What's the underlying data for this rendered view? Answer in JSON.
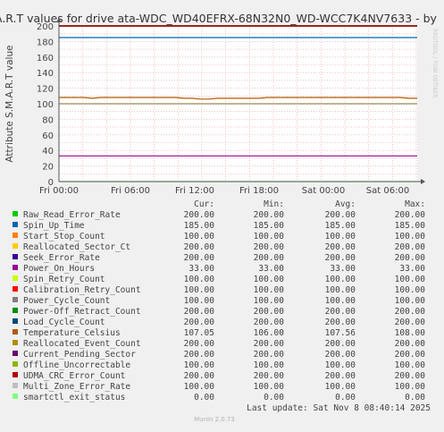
{
  "title": "A.R.T values for drive ata-WDC_WD40EFRX-68N32N0_WD-WCC7K4NV7633 - by",
  "side_text": "RRDTOOL / TOBI OETIKER",
  "footer": {
    "last_update": "Last update: Sat Nov  8 08:40:14 2025",
    "munin": "Munin 2.0.73"
  },
  "colors": {
    "background": "#f0f0f0",
    "plot_bg": "#ffffff",
    "grid": "#e8a0a0",
    "title": "#333333"
  },
  "chart_data": {
    "type": "line",
    "ylabel": "Attribute S.M.A.R.T value",
    "ylim": [
      0,
      200
    ],
    "yticks": [
      0,
      20,
      40,
      60,
      80,
      100,
      120,
      140,
      160,
      180,
      200
    ],
    "xlim": [
      "Fri 00:00",
      "Sat 07:40"
    ],
    "xticks": [
      "Fri 00:00",
      "Fri 06:00",
      "Fri 12:00",
      "Fri 18:00",
      "Sat 00:00",
      "Sat 06:00"
    ],
    "grid": true,
    "columns": [
      "Cur:",
      "Min:",
      "Avg:",
      "Max:"
    ],
    "series": [
      {
        "name": "Raw_Read_Error_Rate",
        "color": "#00cc00",
        "cur": "200.00",
        "min": "200.00",
        "avg": "200.00",
        "max": "200.00",
        "value": 200
      },
      {
        "name": "Spin_Up_Time",
        "color": "#0066b3",
        "cur": "185.00",
        "min": "185.00",
        "avg": "185.00",
        "max": "185.00",
        "value": 185
      },
      {
        "name": "Start_Stop_Count",
        "color": "#ff8000",
        "cur": "100.00",
        "min": "100.00",
        "avg": "100.00",
        "max": "100.00",
        "value": 100
      },
      {
        "name": "Reallocated_Sector_Ct",
        "color": "#ffcc00",
        "cur": "200.00",
        "min": "200.00",
        "avg": "200.00",
        "max": "200.00",
        "value": 200
      },
      {
        "name": "Seek_Error_Rate",
        "color": "#330099",
        "cur": "200.00",
        "min": "200.00",
        "avg": "200.00",
        "max": "200.00",
        "value": 200
      },
      {
        "name": "Power_On_Hours",
        "color": "#990099",
        "cur": "33.00",
        "min": "33.00",
        "avg": "33.00",
        "max": "33.00",
        "value": 33
      },
      {
        "name": "Spin_Retry_Count",
        "color": "#ccff00",
        "cur": "100.00",
        "min": "100.00",
        "avg": "100.00",
        "max": "100.00",
        "value": 100
      },
      {
        "name": "Calibration_Retry_Count",
        "color": "#ff0000",
        "cur": "100.00",
        "min": "100.00",
        "avg": "100.00",
        "max": "100.00",
        "value": 100
      },
      {
        "name": "Power_Cycle_Count",
        "color": "#808080",
        "cur": "100.00",
        "min": "100.00",
        "avg": "100.00",
        "max": "100.00",
        "value": 100
      },
      {
        "name": "Power-Off_Retract_Count",
        "color": "#008f00",
        "cur": "200.00",
        "min": "200.00",
        "avg": "200.00",
        "max": "200.00",
        "value": 200
      },
      {
        "name": "Load_Cycle_Count",
        "color": "#00487d",
        "cur": "200.00",
        "min": "200.00",
        "avg": "200.00",
        "max": "200.00",
        "value": 200
      },
      {
        "name": "Temperature_Celsius",
        "color": "#b35a00",
        "cur": "107.05",
        "min": "106.00",
        "avg": "107.56",
        "max": "108.00",
        "values": [
          108,
          108,
          108,
          108,
          107,
          108,
          108,
          108,
          108,
          108,
          108,
          108,
          108,
          108,
          108,
          107,
          107,
          106,
          106,
          107,
          107,
          107,
          107,
          107,
          107,
          108,
          108,
          108,
          108,
          108,
          108,
          108,
          108,
          108,
          108,
          108,
          108,
          108,
          108,
          108,
          108,
          108,
          107,
          107
        ]
      },
      {
        "name": "Reallocated_Event_Count",
        "color": "#b38f00",
        "cur": "200.00",
        "min": "200.00",
        "avg": "200.00",
        "max": "200.00",
        "value": 200
      },
      {
        "name": "Current_Pending_Sector",
        "color": "#6b006b",
        "cur": "200.00",
        "min": "200.00",
        "avg": "200.00",
        "max": "200.00",
        "value": 200
      },
      {
        "name": "Offline_Uncorrectable",
        "color": "#8fb300",
        "cur": "100.00",
        "min": "100.00",
        "avg": "100.00",
        "max": "100.00",
        "value": 100
      },
      {
        "name": "UDMA_CRC_Error_Count",
        "color": "#b30000",
        "cur": "200.00",
        "min": "200.00",
        "avg": "200.00",
        "max": "200.00",
        "value": 200
      },
      {
        "name": "Multi_Zone_Error_Rate",
        "color": "#bebebe",
        "cur": "100.00",
        "min": "100.00",
        "avg": "100.00",
        "max": "100.00",
        "value": 100
      },
      {
        "name": "smartctl_exit_status",
        "color": "#80ff80",
        "cur": "0.00",
        "min": "0.00",
        "avg": "0.00",
        "max": "0.00",
        "value": 0
      }
    ]
  }
}
